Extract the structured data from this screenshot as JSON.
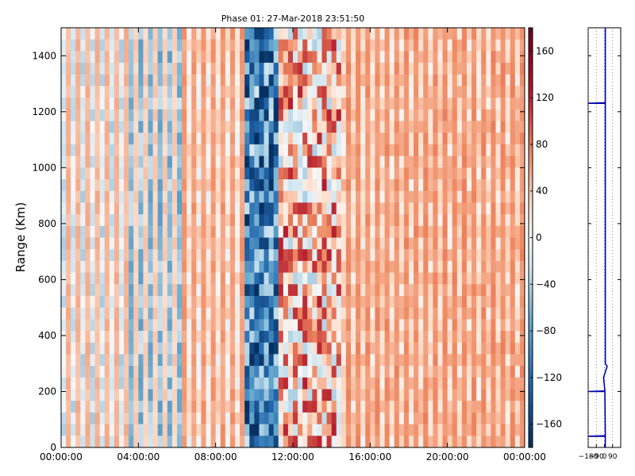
{
  "chart_data": [
    {
      "type": "heatmap",
      "title": "Phase 01: 27-Mar-2018 23:51:50",
      "xlabel": "",
      "ylabel": "Range (Km)",
      "xlim": [
        "00:00:00",
        "24:00:00"
      ],
      "ylim": [
        0,
        1500
      ],
      "x_ticks": [
        "00:00:00",
        "04:00:00",
        "08:00:00",
        "12:00:00",
        "16:00:00",
        "20:00:00",
        "00:00:00"
      ],
      "y_ticks": [
        0,
        200,
        400,
        600,
        800,
        1000,
        1200,
        1400
      ],
      "value_range": [
        -180,
        180
      ],
      "colormap": "RdBu_r",
      "approx_value_by_time_band": [
        {
          "from_hour": 0,
          "to_hour": 3.5,
          "value": -20
        },
        {
          "from_hour": 3.5,
          "to_hour": 6.2,
          "value": -55
        },
        {
          "from_hour": 6.2,
          "to_hour": 9.5,
          "value": 15
        },
        {
          "from_hour": 9.5,
          "to_hour": 11.2,
          "value": -110
        },
        {
          "from_hour": 11.2,
          "to_hour": 14.5,
          "value": 40
        },
        {
          "from_hour": 14.5,
          "to_hour": 24,
          "value": 30
        }
      ]
    },
    {
      "type": "colorbar",
      "ticks": [
        -160,
        -120,
        -80,
        -40,
        0,
        40,
        80,
        120,
        160
      ],
      "range": [
        -180,
        180
      ]
    },
    {
      "type": "line",
      "xlim": [
        -180,
        180
      ],
      "x_ticks": [
        "-180",
        "-90",
        "0",
        "90"
      ],
      "ylim": [
        0,
        1500
      ],
      "line_color": "#0000aa",
      "profile": [
        {
          "range": 0,
          "value": 10
        },
        {
          "range": 40,
          "value": 10
        },
        {
          "range": 40,
          "value": -180
        },
        {
          "range": 42,
          "value": 10
        },
        {
          "range": 200,
          "value": 5
        },
        {
          "range": 200,
          "value": -180
        },
        {
          "range": 202,
          "value": 5
        },
        {
          "range": 250,
          "value": -10
        },
        {
          "range": 265,
          "value": 5
        },
        {
          "range": 290,
          "value": 30
        },
        {
          "range": 300,
          "value": 10
        },
        {
          "range": 1230,
          "value": 10
        },
        {
          "range": 1230,
          "value": -180
        },
        {
          "range": 1232,
          "value": 10
        },
        {
          "range": 1500,
          "value": 10
        }
      ]
    }
  ],
  "colors": {
    "axis": "#000000",
    "profile_line": "#0000aa",
    "grid": "#555555"
  }
}
